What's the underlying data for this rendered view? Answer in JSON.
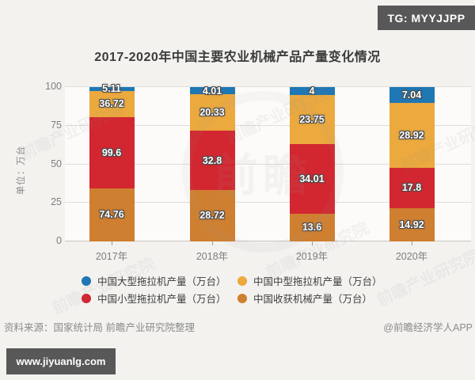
{
  "header": {
    "tg_badge": "TG: MYYJJPP"
  },
  "watermarks": {
    "diagonal_text": "前瞻产业研究院",
    "emblem_text": "前瞻",
    "site_badge": "www.jiyuanlg.com"
  },
  "footer": {
    "source": "资料来源：国家统计局 前瞻产业研究院整理",
    "credit": "@前瞻经济学人APP"
  },
  "chart_data": {
    "type": "bar",
    "variant": "stacked-percent",
    "title": "2017-2020年中国主要农业机械产品产量变化情况",
    "ylabel": "单位：万台",
    "categories": [
      "2017年",
      "2018年",
      "2019年",
      "2020年"
    ],
    "series": [
      {
        "name": "中国大型拖拉机产量（万台）",
        "color": "#1f77b4",
        "values": [
          5.11,
          4.01,
          4,
          7.04
        ]
      },
      {
        "name": "中国中型拖拉机产量（万台）",
        "color": "#eba93e",
        "values": [
          36.72,
          20.33,
          23.75,
          28.92
        ]
      },
      {
        "name": "中国小型拖拉机产量（万台）",
        "color": "#d22730",
        "values": [
          99.6,
          32.8,
          34.01,
          17.8
        ]
      },
      {
        "name": "中国收获机械产量（万台）",
        "color": "#cf7f30",
        "values": [
          74.76,
          28.72,
          13.6,
          14.92
        ]
      }
    ],
    "stack_order_bottom_to_top": [
      3,
      2,
      1,
      0
    ],
    "yticks": [
      0,
      25,
      50,
      75,
      100
    ],
    "ylim": [
      0,
      100
    ],
    "bar_height_normalized_to_100": true,
    "grid": true,
    "legend_position": "bottom"
  }
}
